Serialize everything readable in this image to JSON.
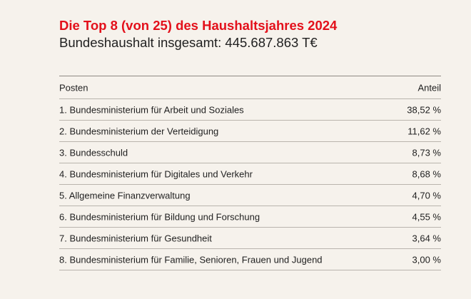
{
  "title": "Die Top 8 (von 25) des Haushaltsjahres 2024",
  "subtitle": "Bundeshaushalt insgesamt: 445.687.863 T€",
  "colors": {
    "accent": "#e3101b",
    "background": "#f6f2ec",
    "rule": "#b9b4ad"
  },
  "table": {
    "headers": {
      "posten": "Posten",
      "anteil": "Anteil"
    },
    "rows": [
      {
        "posten": "1. Bundesministerium für Arbeit und Soziales",
        "anteil": "38,52 %"
      },
      {
        "posten": "2. Bundesministerium der Verteidigung",
        "anteil": "11,62 %"
      },
      {
        "posten": "3. Bundesschuld",
        "anteil": "8,73 %"
      },
      {
        "posten": "4. Bundesministerium für Digitales und Verkehr",
        "anteil": "8,68 %"
      },
      {
        "posten": "5. Allgemeine Finanzverwaltung",
        "anteil": "4,70 %"
      },
      {
        "posten": "6. Bundesministerium für Bildung und Forschung",
        "anteil": "4,55 %"
      },
      {
        "posten": "7. Bundesministerium für Gesundheit",
        "anteil": "3,64 %"
      },
      {
        "posten": "8. Bundesministerium für Familie, Senioren, Frauen und Jugend",
        "anteil": "3,00 %"
      }
    ]
  }
}
